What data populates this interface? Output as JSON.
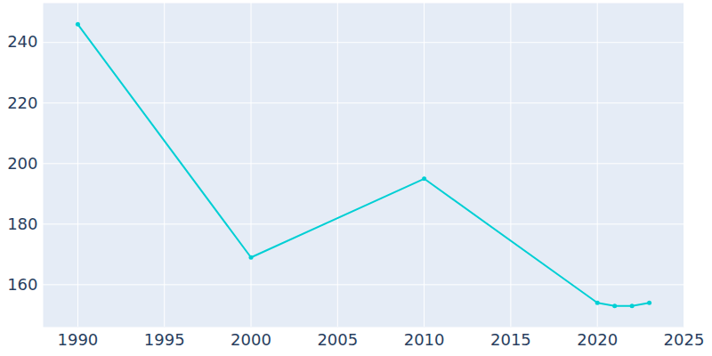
{
  "chart_data": {
    "type": "line",
    "x": [
      1990,
      2000,
      2010,
      2020,
      2021,
      2022,
      2023
    ],
    "values": [
      246,
      169,
      195,
      154,
      153,
      153,
      154
    ],
    "color": "#00cfd4",
    "marker": "circle",
    "xlim": [
      1988,
      2025
    ],
    "xticks": [
      1990,
      1995,
      2000,
      2005,
      2010,
      2015,
      2020,
      2025
    ],
    "ylim": [
      146,
      253
    ],
    "yticks": [
      160,
      180,
      200,
      220,
      240
    ],
    "grid": true
  }
}
